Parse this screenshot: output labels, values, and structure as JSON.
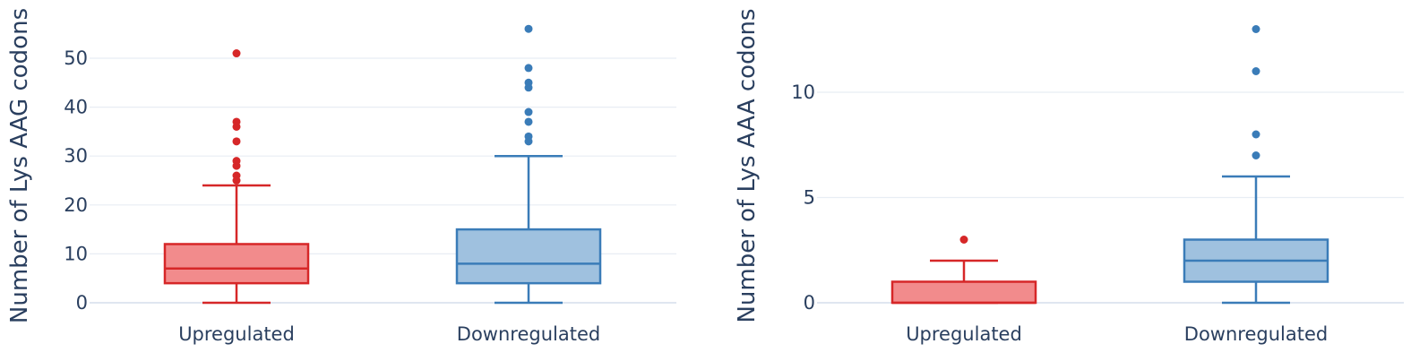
{
  "chart_data": [
    {
      "type": "box",
      "ylabel": "Number of Lys AAG codons",
      "ylim": [
        0,
        56
      ],
      "yticks": [
        0,
        10,
        20,
        30,
        40,
        50
      ],
      "grid": true,
      "categories": [
        "Upregulated",
        "Downregulated"
      ],
      "boxes": [
        {
          "category": "Upregulated",
          "color": "#d62728",
          "fill": "#f28b8c",
          "min": 0,
          "q1": 4,
          "median": 7,
          "q3": 12,
          "max": 24,
          "outliers": [
            25,
            26,
            28,
            29,
            33,
            36,
            37,
            51
          ]
        },
        {
          "category": "Downregulated",
          "color": "#3a7cb8",
          "fill": "#9fc1df",
          "min": 0,
          "q1": 4,
          "median": 8,
          "q3": 15,
          "max": 30,
          "outliers": [
            33,
            34,
            37,
            39,
            44,
            45,
            48,
            56
          ]
        }
      ]
    },
    {
      "type": "box",
      "ylabel": "Number of Lys AAA codons",
      "ylim": [
        0,
        13
      ],
      "yticks": [
        0,
        5,
        10
      ],
      "grid": true,
      "categories": [
        "Upregulated",
        "Downregulated"
      ],
      "boxes": [
        {
          "category": "Upregulated",
          "color": "#d62728",
          "fill": "#f28b8c",
          "min": 0,
          "q1": 0,
          "median": 0,
          "q3": 1,
          "max": 2,
          "outliers": [
            3
          ]
        },
        {
          "category": "Downregulated",
          "color": "#3a7cb8",
          "fill": "#9fc1df",
          "min": 0,
          "q1": 1,
          "median": 2,
          "q3": 3,
          "max": 6,
          "outliers": [
            7,
            8,
            11,
            13
          ]
        }
      ]
    }
  ]
}
